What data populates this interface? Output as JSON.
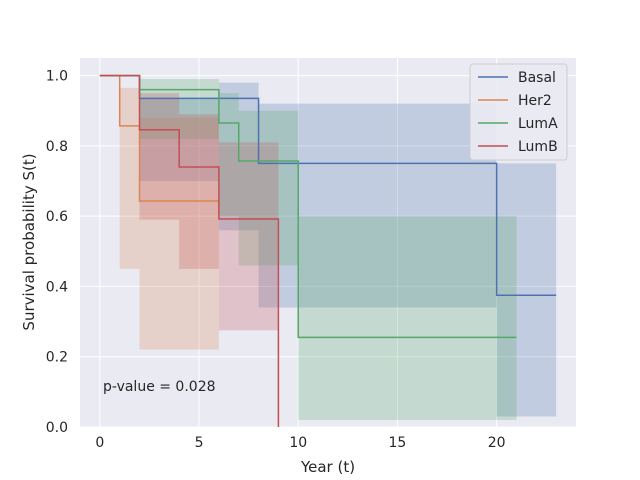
{
  "chart_data": {
    "type": "line",
    "subtype": "kaplan-meier step",
    "xlabel": "Year (t)",
    "ylabel": "Survival probability S(t)",
    "xlim": [
      -1,
      24
    ],
    "ylim": [
      0,
      1.05
    ],
    "xticks": [
      0,
      5,
      10,
      15,
      20
    ],
    "yticks": [
      0.0,
      0.2,
      0.4,
      0.6,
      0.8,
      1.0
    ],
    "grid": true,
    "legend_position": "upper-right",
    "annotation": "p-value = 0.028",
    "series": [
      {
        "name": "Basal",
        "color": "#4c72b0",
        "steps": [
          [
            0,
            1.0
          ],
          [
            2,
            0.935
          ],
          [
            8,
            0.75
          ],
          [
            20,
            0.375
          ],
          [
            23,
            0.375
          ]
        ],
        "ci": [
          [
            0,
            1.0,
            1.0
          ],
          [
            2,
            0.935,
            0.7
          ],
          [
            6,
            0.98,
            0.56
          ],
          [
            8,
            0.92,
            0.34
          ],
          [
            20,
            0.75,
            0.03
          ],
          [
            23,
            0.75,
            0.03
          ]
        ]
      },
      {
        "name": "Her2",
        "color": "#dd8452",
        "steps": [
          [
            0,
            1.0
          ],
          [
            1,
            0.857
          ],
          [
            2,
            0.643
          ],
          [
            6,
            0.643
          ]
        ],
        "ci": [
          [
            0,
            1.0,
            1.0
          ],
          [
            1,
            0.965,
            0.45
          ],
          [
            2,
            0.88,
            0.22
          ],
          [
            6,
            0.88,
            0.22
          ]
        ]
      },
      {
        "name": "LumA",
        "color": "#55a868",
        "steps": [
          [
            0,
            1.0
          ],
          [
            2,
            0.96
          ],
          [
            6,
            0.865
          ],
          [
            7,
            0.757
          ],
          [
            10,
            0.255
          ],
          [
            21,
            0.255
          ]
        ],
        "ci": [
          [
            0,
            1.0,
            1.0
          ],
          [
            2,
            0.99,
            0.82
          ],
          [
            6,
            0.95,
            0.6
          ],
          [
            7,
            0.9,
            0.46
          ],
          [
            10,
            0.6,
            0.02
          ],
          [
            21,
            0.6,
            0.02
          ]
        ]
      },
      {
        "name": "LumB",
        "color": "#c44e52",
        "steps": [
          [
            0,
            1.0
          ],
          [
            2,
            0.846
          ],
          [
            4,
            0.74
          ],
          [
            6,
            0.592
          ],
          [
            9,
            0.592
          ],
          [
            9,
            0.0
          ]
        ],
        "ci": [
          [
            0,
            1.0,
            1.0
          ],
          [
            2,
            0.95,
            0.59
          ],
          [
            4,
            0.89,
            0.45
          ],
          [
            6,
            0.81,
            0.275
          ],
          [
            9,
            0.81,
            0.275
          ]
        ]
      }
    ]
  }
}
